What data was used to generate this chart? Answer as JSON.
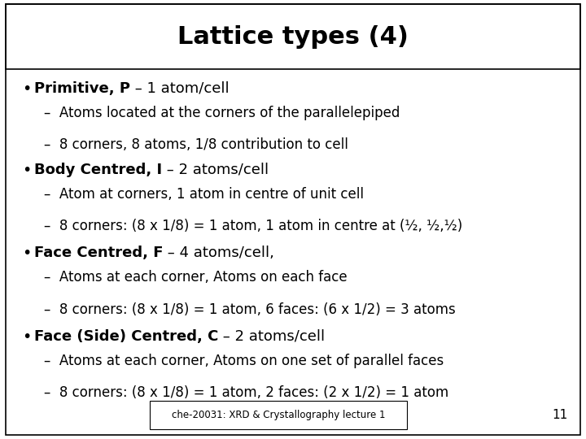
{
  "title": "Lattice types (4)",
  "title_fontsize": 22,
  "background_color": "#ffffff",
  "border_color": "#000000",
  "footer_text": "che-20031: XRD & Crystallography lecture 1",
  "footer_number": "11",
  "bullet_items": [
    {
      "bold_part": "Primitive, P",
      "normal_part": " – 1 atom/cell",
      "sub_items": [
        "–  Atoms located at the corners of the parallelepiped",
        "–  8 corners, 8 atoms, 1/8 contribution to cell"
      ]
    },
    {
      "bold_part": "Body Centred, I",
      "normal_part": " – 2 atoms/cell",
      "sub_items": [
        "–  Atom at corners, 1 atom in centre of unit cell",
        "–  8 corners: (8 x 1/8) = 1 atom, 1 atom in centre at (½, ½,½)"
      ]
    },
    {
      "bold_part": "Face Centred, F",
      "normal_part": " – 4 atoms/cell,",
      "sub_items": [
        "–  Atoms at each corner, Atoms on each face",
        "–  8 corners: (8 x 1/8) = 1 atom, 6 faces: (6 x 1/2) = 3 atoms"
      ]
    },
    {
      "bold_part": "Face (Side) Centred, C",
      "normal_part": " – 2 atoms/cell",
      "sub_items": [
        "–  Atoms at each corner, Atoms on one set of parallel faces",
        "–  8 corners: (8 x 1/8) = 1 atom, 2 faces: (2 x 1/2) = 1 atom"
      ]
    }
  ],
  "bullet_fontsize": 13,
  "sub_fontsize": 12,
  "bullet_bold_fontsize": 13
}
